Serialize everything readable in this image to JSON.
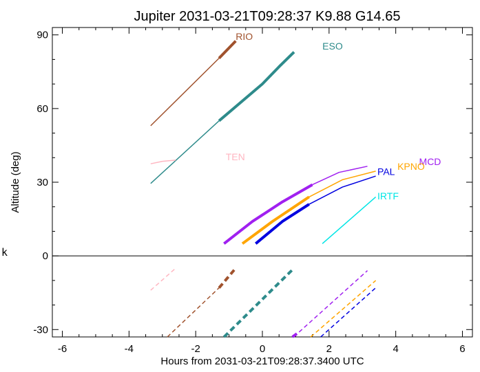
{
  "chart_data": {
    "type": "line",
    "title": "Jupiter 2031-03-21T09:28:37  K9.88  G14.65",
    "xlabel": "Hours from 2031-03-21T09:28:37.3400 UTC",
    "ylabel": "Altitude (deg)",
    "side_mark": "k",
    "xlim": [
      -6.3,
      6.3
    ],
    "ylim": [
      -33,
      93
    ],
    "xticks": [
      -6,
      -4,
      -2,
      0,
      2,
      4,
      6
    ],
    "yticks": [
      -30,
      0,
      30,
      60,
      90
    ],
    "zero_line": true,
    "series": [
      {
        "name": "RIO",
        "color": "#a0522d",
        "label_at": [
          -0.8,
          88
        ],
        "segments": [
          {
            "style": "thin",
            "points": [
              [
                -3.35,
                53
              ],
              [
                -1.3,
                80.5
              ]
            ]
          },
          {
            "style": "thick",
            "points": [
              [
                -1.3,
                80.5
              ],
              [
                -0.8,
                87.5
              ]
            ]
          },
          {
            "style": "dashed-thin",
            "points": [
              [
                -2.85,
                -33
              ],
              [
                -1.3,
                -13
              ]
            ]
          },
          {
            "style": "dashed-thick",
            "points": [
              [
                -1.3,
                -13
              ],
              [
                -0.8,
                -5
              ]
            ]
          }
        ]
      },
      {
        "name": "ESO",
        "color": "#2e8b8b",
        "label_at": [
          1.8,
          84
        ],
        "segments": [
          {
            "style": "thin",
            "points": [
              [
                -3.35,
                29.5
              ],
              [
                -1.3,
                55
              ]
            ]
          },
          {
            "style": "thick",
            "points": [
              [
                -1.3,
                55
              ],
              [
                0,
                70
              ],
              [
                0.5,
                77
              ],
              [
                0.95,
                83
              ]
            ]
          },
          {
            "style": "dashed-thick",
            "points": [
              [
                -1.15,
                -33
              ],
              [
                0.95,
                -5
              ]
            ]
          }
        ]
      },
      {
        "name": "TEN",
        "color": "#ffb6c1",
        "label_at": [
          -1.1,
          39
        ],
        "segments": [
          {
            "style": "thin",
            "points": [
              [
                -3.35,
                37.5
              ],
              [
                -3.0,
                38.5
              ],
              [
                -2.6,
                39
              ]
            ]
          },
          {
            "style": "dashed-thin",
            "points": [
              [
                -3.35,
                -14
              ],
              [
                -2.6,
                -5
              ]
            ]
          }
        ]
      },
      {
        "name": "MCD",
        "color": "#a020f0",
        "label_at": [
          4.7,
          37
        ],
        "segments": [
          {
            "style": "thick",
            "points": [
              [
                -1.15,
                5
              ],
              [
                -0.3,
                14
              ],
              [
                0.6,
                22
              ],
              [
                1.5,
                29
              ]
            ]
          },
          {
            "style": "thin",
            "points": [
              [
                1.5,
                29
              ],
              [
                2.3,
                34
              ],
              [
                3.15,
                36.5
              ]
            ]
          },
          {
            "style": "dashed-thick",
            "points": [
              [
                0.9,
                -33
              ],
              [
                1.1,
                -31
              ]
            ]
          },
          {
            "style": "dashed-thin",
            "points": [
              [
                1.1,
                -31
              ],
              [
                3.15,
                -6
              ]
            ]
          }
        ]
      },
      {
        "name": "KPNO",
        "color": "#ffa500",
        "label_at": [
          4.05,
          35
        ],
        "segments": [
          {
            "style": "thick",
            "points": [
              [
                -0.6,
                5
              ],
              [
                0.3,
                14
              ],
              [
                1.4,
                24
              ]
            ]
          },
          {
            "style": "thin",
            "points": [
              [
                1.4,
                24
              ],
              [
                2.4,
                31
              ],
              [
                3.4,
                34.5
              ]
            ]
          },
          {
            "style": "dashed-thin",
            "points": [
              [
                1.45,
                -33
              ],
              [
                3.4,
                -10
              ]
            ]
          }
        ]
      },
      {
        "name": "PAL",
        "color": "#0000e0",
        "label_at": [
          3.45,
          33
        ],
        "segments": [
          {
            "style": "thick",
            "points": [
              [
                -0.2,
                5
              ],
              [
                0.6,
                14
              ],
              [
                1.4,
                21
              ]
            ]
          },
          {
            "style": "thin",
            "points": [
              [
                1.4,
                21
              ],
              [
                2.4,
                28
              ],
              [
                3.4,
                32.5
              ]
            ]
          },
          {
            "style": "dashed-thin",
            "points": [
              [
                1.75,
                -33
              ],
              [
                3.4,
                -13
              ]
            ]
          }
        ]
      },
      {
        "name": "IRTF",
        "color": "#00e5e5",
        "label_at": [
          3.45,
          23
        ],
        "segments": [
          {
            "style": "thin",
            "points": [
              [
                1.8,
                5
              ],
              [
                3.4,
                24
              ]
            ]
          }
        ]
      }
    ]
  }
}
